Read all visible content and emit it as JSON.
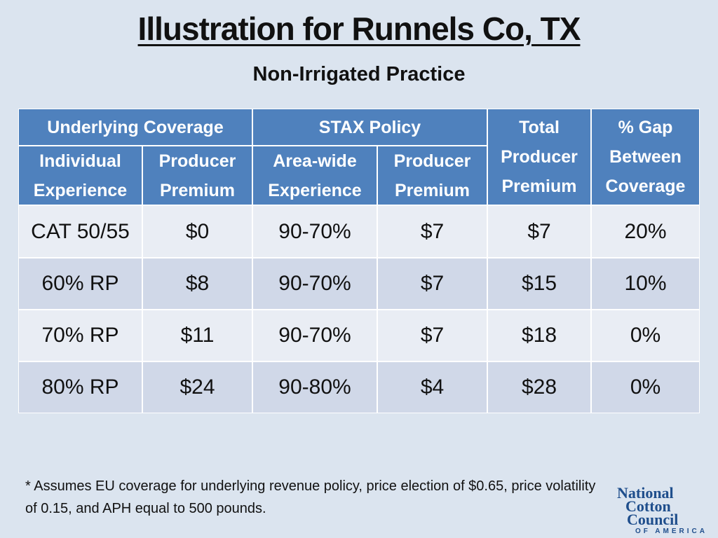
{
  "title": "Illustration for Runnels Co, TX",
  "subtitle": "Non-Irrigated Practice",
  "table": {
    "groups": [
      "Underlying Coverage",
      "STAX Policy",
      "Total Producer Premium",
      "% Gap Between Coverage"
    ],
    "subheaders": [
      "Individual Experience",
      "Producer Premium",
      "Area-wide Experience",
      "Producer Premium"
    ],
    "rows": [
      [
        "CAT 50/55",
        "$0",
        "90-70%",
        "$7",
        "$7",
        "20%"
      ],
      [
        "60% RP",
        "$8",
        "90-70%",
        "$7",
        "$15",
        "10%"
      ],
      [
        "70% RP",
        "$11",
        "90-70%",
        "$7",
        "$18",
        "0%"
      ],
      [
        "80% RP",
        "$24",
        "90-80%",
        "$4",
        "$28",
        "0%"
      ]
    ]
  },
  "footnote": "* Assumes EU coverage for underlying revenue policy, price election of $0.65, price volatility of 0.15, and APH equal to 500 pounds.",
  "logo": {
    "line1": "National",
    "line2": "Cotton",
    "line3": "Council",
    "line4": "OF AMERICA"
  }
}
